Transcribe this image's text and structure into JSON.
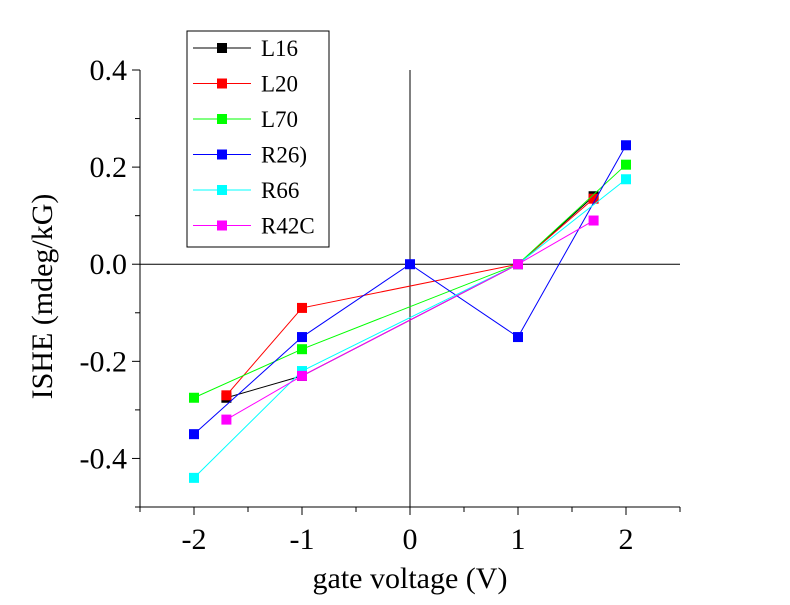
{
  "chart_data": {
    "type": "line",
    "title": "",
    "xlabel": "gate voltage (V)",
    "ylabel": "ISHE (mdeg/kG)",
    "xlim": [
      -2.5,
      2.5
    ],
    "ylim": [
      -0.5,
      0.4
    ],
    "xticks": [
      -2,
      -1,
      0,
      1,
      2
    ],
    "xtick_labels": [
      "-2",
      "-1",
      "0",
      "1",
      "2"
    ],
    "yticks": [
      -0.4,
      -0.2,
      0.0,
      0.2,
      0.4
    ],
    "ytick_labels": [
      "-0.4",
      "-0.2",
      "0.0",
      "0.2",
      "0.4"
    ],
    "grid": false,
    "zero_lines": true,
    "legend_position": "top-left",
    "series": [
      {
        "name": "L16",
        "color": "#000000",
        "x": [
          -1.7,
          -1,
          1,
          1.7
        ],
        "y": [
          -0.275,
          -0.23,
          0.0,
          0.14
        ]
      },
      {
        "name": "L20",
        "color": "#ff0000",
        "x": [
          -1.7,
          -1,
          1,
          1.7
        ],
        "y": [
          -0.27,
          -0.09,
          0.0,
          0.135
        ]
      },
      {
        "name": "L70",
        "color": "#00ff00",
        "x": [
          -2,
          -1,
          1,
          2
        ],
        "y": [
          -0.275,
          -0.175,
          0.0,
          0.205
        ]
      },
      {
        "name": "R26)",
        "color": "#0000ff",
        "x": [
          -2,
          -1,
          0,
          1,
          2
        ],
        "y": [
          -0.35,
          -0.15,
          0.0,
          -0.15,
          0.245
        ]
      },
      {
        "name": "R66",
        "color": "#00ffff",
        "x": [
          -2,
          -1,
          1,
          2
        ],
        "y": [
          -0.44,
          -0.22,
          0.0,
          0.175
        ]
      },
      {
        "name": "R42C",
        "color": "#ff00ff",
        "x": [
          -1.7,
          -1,
          1,
          1.7
        ],
        "y": [
          -0.32,
          -0.23,
          0.0,
          0.09
        ]
      }
    ]
  }
}
